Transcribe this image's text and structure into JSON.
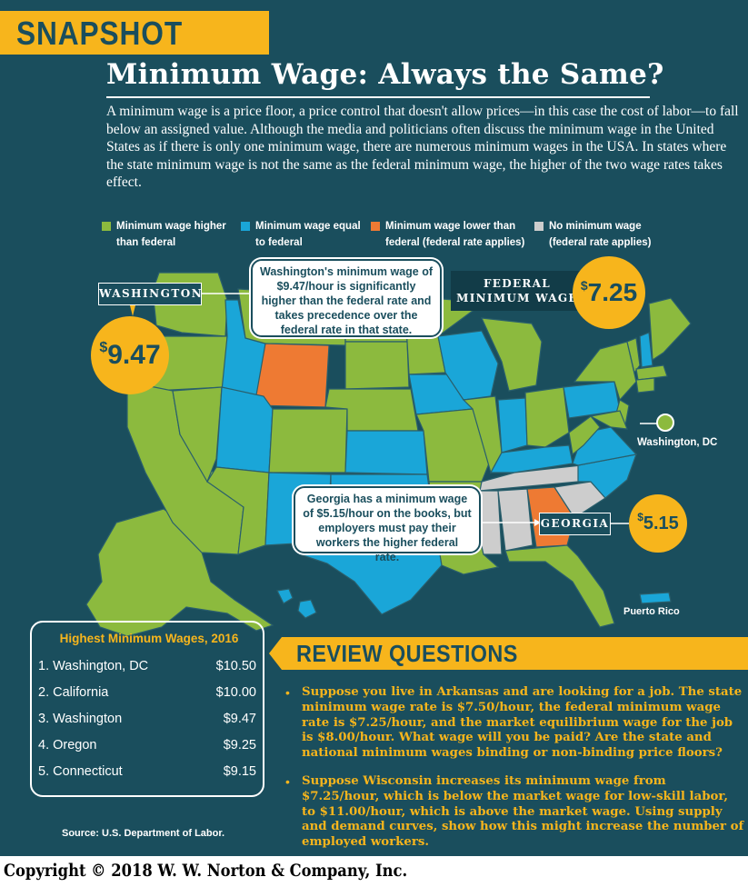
{
  "banner": {
    "label": "SNAPSHOT"
  },
  "title": "Minimum Wage: Always the Same?",
  "intro": "A minimum wage is a price floor, a price control that doesn't allow prices—in this case the cost of labor—to fall below an assigned value.  Although the media and politicians often discuss the minimum wage in the United States as if there is only one minimum wage, there are numerous minimum wages in the USA. In states where the state minimum wage is not the same as the federal minimum wage, the higher of the two wage rates takes effect.",
  "legend": [
    {
      "line1": "Minimum wage higher",
      "line2": "than federal",
      "color": "#8cba3e"
    },
    {
      "line1": "Minimum wage equal",
      "line2": "to federal",
      "color": "#1aa6d8"
    },
    {
      "line1": "Minimum wage lower than",
      "line2": "federal (federal rate applies)",
      "color": "#ee7a33"
    },
    {
      "line1": "No minimum wage",
      "line2": "(federal rate applies)",
      "color": "#cdcdcd"
    }
  ],
  "map": {
    "washington_tag": "WASHINGTON",
    "washington_wage": {
      "dollar": "$",
      "amount": "9.47"
    },
    "washington_callout": "Washington's minimum wage of $9.47/hour is significantly higher than the federal rate and takes precedence over the federal rate in that state.",
    "federal_label": "FEDERAL MINIMUM WAGE",
    "federal_wage": {
      "dollar": "$",
      "amount": "7.25"
    },
    "georgia_tag": "GEORGIA",
    "georgia_wage": {
      "dollar": "$",
      "amount": "5.15"
    },
    "georgia_callout": "Georgia has a minimum wage of $5.15/hour on the books, but employers must pay their workers the higher federal rate.",
    "dc_label": "Washington, DC",
    "pr_label": "Puerto Rico"
  },
  "highest_wages": {
    "title": "Highest Minimum Wages, 2016",
    "rows": [
      {
        "name": "1. Washington, DC",
        "value": "$10.50"
      },
      {
        "name": "2. California",
        "value": "$10.00"
      },
      {
        "name": "3. Washington",
        "value": "$9.47"
      },
      {
        "name": "4. Oregon",
        "value": "$9.25"
      },
      {
        "name": "5. Connecticut",
        "value": "$9.15"
      }
    ],
    "source": "Source: U.S. Department of Labor."
  },
  "review": {
    "title": "REVIEW QUESTIONS",
    "questions": [
      "Suppose you live in Arkansas and are looking for a job. The state minimum wage rate is $7.50/hour, the federal minimum wage rate is $7.25/hour, and the market equilibrium wage for the job is $8.00/hour. What wage will you be paid?  Are the state and national minimum wages binding or non-binding price floors?",
      "Suppose Wisconsin increases its minimum wage from $7.25/hour, which is below the market wage for low-skill labor, to $11.00/hour, which is above the market wage. Using supply and demand curves, show how this might increase the number of employed workers."
    ]
  },
  "copyright": "Copyright © 2018 W. W. Norton & Company, Inc."
}
